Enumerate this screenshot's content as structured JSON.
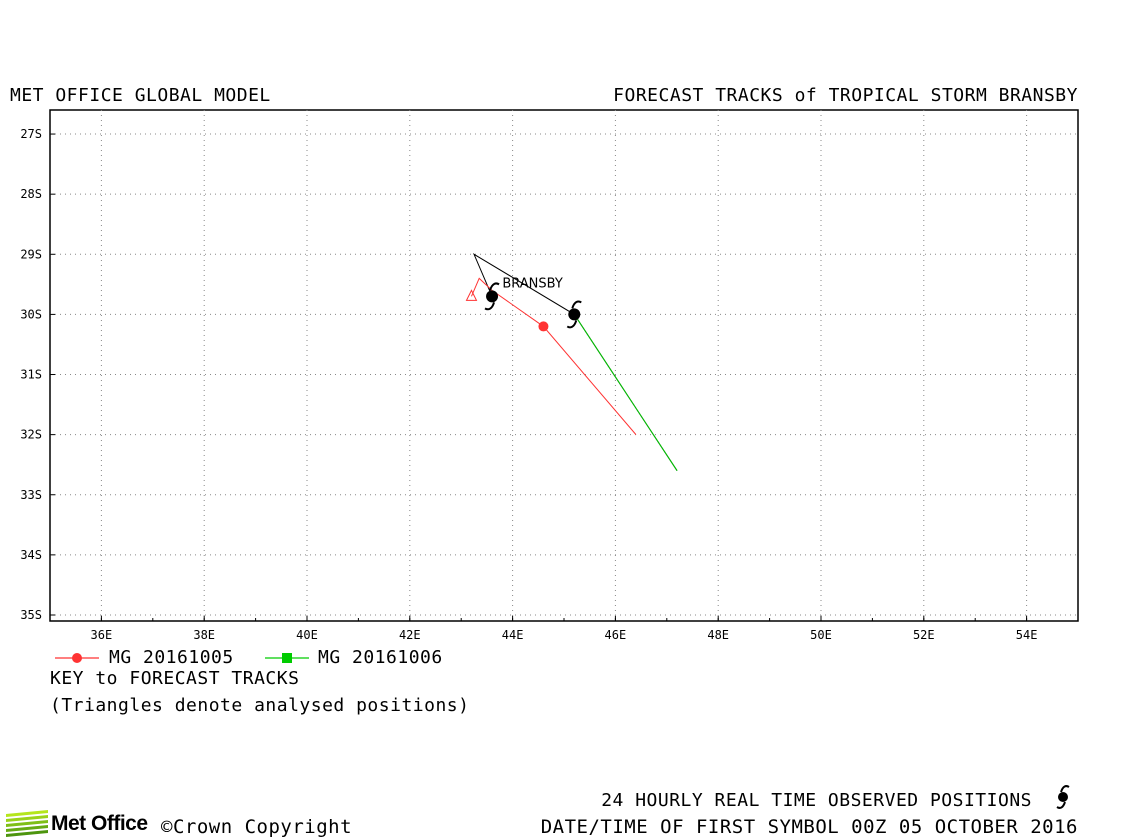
{
  "header": {
    "left_title": "MET OFFICE GLOBAL MODEL",
    "right_title": "FORECAST TRACKS of TROPICAL STORM BRANSBY"
  },
  "chart_data": {
    "type": "map-tracks",
    "lon_range": [
      35,
      55
    ],
    "lat_range": [
      -35.1,
      -26.6
    ],
    "lon_ticks": [
      36,
      38,
      40,
      42,
      44,
      46,
      48,
      50,
      52,
      54
    ],
    "lon_tick_labels": [
      "36E",
      "38E",
      "40E",
      "42E",
      "44E",
      "46E",
      "48E",
      "50E",
      "52E",
      "54E"
    ],
    "lat_ticks": [
      -27,
      -28,
      -29,
      -30,
      -31,
      -32,
      -33,
      -34,
      -35
    ],
    "lat_tick_labels": [
      "27S",
      "28S",
      "29S",
      "30S",
      "31S",
      "32S",
      "33S",
      "34S",
      "35S"
    ],
    "grid": true,
    "storm_label": {
      "text": "BRANSBY",
      "lon": 43.8,
      "lat": -29.55
    },
    "observed_track": {
      "name": "24 HOURLY REAL TIME OBSERVED POSITIONS",
      "color": "#000000",
      "points": [
        [
          43.6,
          -29.7
        ],
        [
          43.25,
          -29.0
        ],
        [
          45.2,
          -30.0
        ],
        [
          47.2,
          -32.6
        ]
      ],
      "symbols": [
        [
          43.6,
          -29.7
        ],
        [
          45.2,
          -30.0
        ]
      ]
    },
    "series": [
      {
        "name": "MG 20161005",
        "color": "#ff3333",
        "marker": "circle",
        "analysed": [
          [
            43.2,
            -29.7
          ],
          [
            43.35,
            -29.4
          ],
          [
            43.6,
            -29.6
          ]
        ],
        "forecast": [
          [
            43.6,
            -29.6
          ],
          [
            44.6,
            -30.2
          ],
          [
            46.4,
            -32.0
          ]
        ],
        "markers": [
          [
            44.6,
            -30.2
          ]
        ]
      },
      {
        "name": "MG 20161006",
        "color": "#00cc00",
        "marker": "square",
        "analysed": [],
        "forecast": [
          [
            45.2,
            -30.0
          ],
          [
            47.2,
            -32.6
          ]
        ],
        "markers": [
          [
            45.2,
            -30.0
          ]
        ]
      }
    ]
  },
  "legend": {
    "key_title": "KEY to FORECAST TRACKS",
    "note": "(Triangles denote analysed positions)"
  },
  "footer": {
    "brand": "Met Office",
    "copyright": "©Crown Copyright",
    "observed_label": "24 HOURLY REAL TIME OBSERVED POSITIONS",
    "first_symbol": "DATE/TIME OF FIRST SYMBOL 00Z 05 OCTOBER 2016"
  }
}
